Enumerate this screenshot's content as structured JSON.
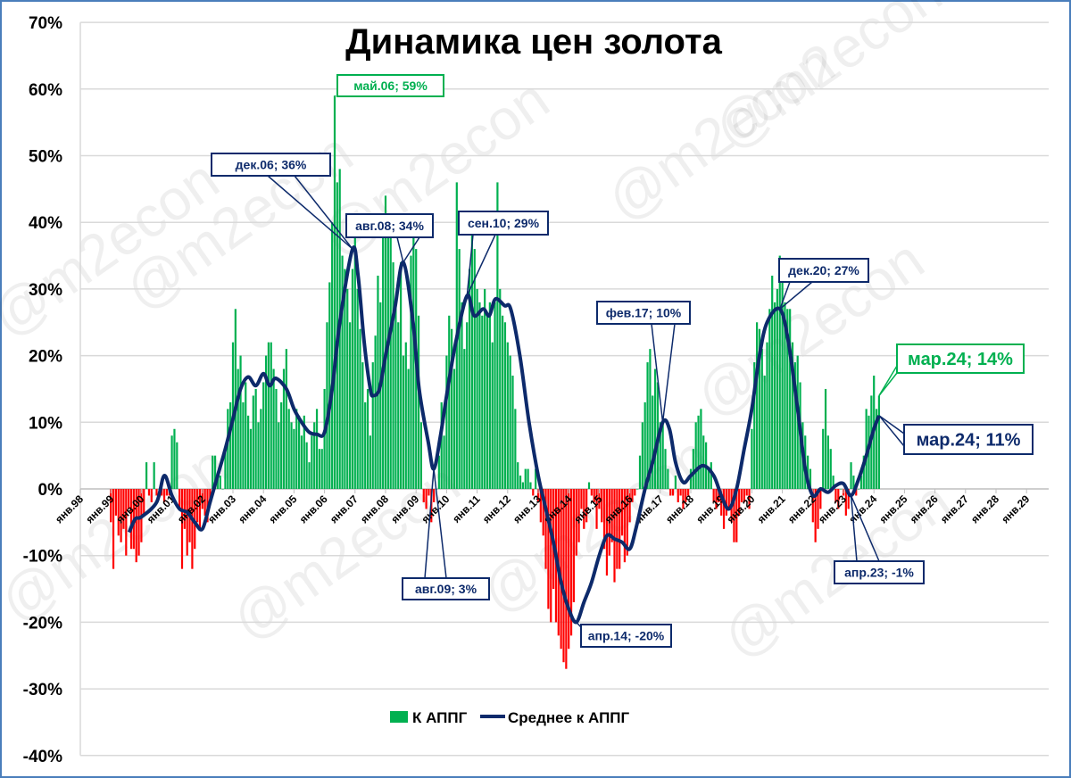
{
  "chart_data": {
    "type": "bar+line",
    "title": "Динамика цен золота",
    "xlabel": "",
    "ylabel": "",
    "ylim": [
      -40,
      70
    ],
    "yticks": [
      "70%",
      "60%",
      "50%",
      "40%",
      "30%",
      "20%",
      "10%",
      "0%",
      "-10%",
      "-20%",
      "-30%",
      "-40%"
    ],
    "ytick_values": [
      70,
      60,
      50,
      40,
      30,
      20,
      10,
      0,
      -10,
      -20,
      -30,
      -40
    ],
    "xticks": [
      "янв.98",
      "янв.99",
      "янв.00",
      "янв.01",
      "янв.02",
      "янв.03",
      "янв.04",
      "янв.05",
      "янв.06",
      "янв.07",
      "янв.08",
      "янв.09",
      "янв.10",
      "янв.11",
      "янв.12",
      "янв.13",
      "янв.14",
      "янв.15",
      "янв.16",
      "янв.17",
      "янв.18",
      "янв.19",
      "янв.20",
      "янв.21",
      "янв.22",
      "янв.23",
      "янв.24",
      "янв.25",
      "янв.26",
      "янв.27",
      "янв.28",
      "янв.29"
    ],
    "xrange_years": [
      1998,
      2029
    ],
    "grid": "horizontal",
    "legend_position": "bottom-center",
    "legend": [
      "К АППГ",
      "Среднее к АППГ"
    ],
    "colors": {
      "positive": "#00b050",
      "negative": "#ff0000",
      "line": "#0d2a6b",
      "grid": "#d9d9d9"
    },
    "bars": {
      "name": "К АППГ",
      "start": "1999-01",
      "monthly_values_by_year": {
        "1999": [
          -5,
          -12,
          -4,
          -7,
          -8,
          -6,
          -10,
          -3,
          -9,
          -9,
          -11,
          -10
        ],
        "2000": [
          -8,
          -4,
          4,
          -1,
          -2,
          4,
          -1,
          0,
          -1,
          -2,
          -1,
          -1
        ],
        "2001": [
          8,
          9,
          7,
          -3,
          -12,
          -6,
          -10,
          -8,
          -12,
          -9,
          -5,
          -6
        ],
        "2002": [
          -3,
          -4,
          -5,
          -2,
          5,
          5,
          2,
          2,
          0,
          6,
          12,
          13
        ],
        "2003": [
          22,
          27,
          18,
          20,
          13,
          16,
          11,
          9,
          14,
          15,
          10,
          12
        ],
        "2004": [
          16,
          20,
          22,
          22,
          18,
          15,
          10,
          13,
          18,
          21,
          12,
          10
        ],
        "2005": [
          9,
          12,
          11,
          8,
          11,
          7,
          4,
          8,
          10,
          12,
          6,
          6
        ],
        "2006": [
          15,
          25,
          31,
          40,
          59,
          46,
          48,
          35,
          33,
          30,
          25,
          33
        ],
        "2007": [
          38,
          30,
          24,
          19,
          13,
          15,
          8,
          19,
          23,
          32,
          28,
          41
        ],
        "2008": [
          44,
          40,
          38,
          34,
          28,
          25,
          34,
          20,
          22,
          18,
          35,
          40
        ],
        "2009": [
          36,
          26,
          10,
          -2,
          -3,
          -1,
          -5,
          -2,
          0,
          5,
          13,
          8
        ],
        "2010": [
          20,
          26,
          24,
          18,
          46,
          36,
          28,
          21,
          25,
          33,
          39,
          36
        ],
        "2011": [
          30,
          28,
          26,
          30,
          26,
          28,
          22,
          28,
          46,
          30,
          26,
          25
        ],
        "2012": [
          22,
          20,
          17,
          12,
          4,
          2,
          1,
          3,
          3,
          1,
          -1,
          3
        ],
        "2013": [
          -2,
          -5,
          -7,
          -12,
          -18,
          -20,
          -15,
          -20,
          -22,
          -24,
          -26,
          -27
        ],
        "2014": [
          -24,
          -22,
          -17,
          -10,
          -8,
          -3,
          -6,
          -5,
          1,
          -1,
          -2,
          -6
        ],
        "2015": [
          -3,
          -5,
          -9,
          -13,
          -10,
          -8,
          -14,
          -12,
          -12,
          -7,
          -11,
          -10
        ],
        "2016": [
          -5,
          -2,
          -1,
          0,
          5,
          10,
          13,
          19,
          21,
          14,
          18,
          16
        ],
        "2017": [
          10,
          10,
          6,
          3,
          -1,
          -1,
          2,
          -2,
          -1,
          -3,
          -2,
          -1
        ],
        "2018": [
          3,
          6,
          10,
          11,
          12,
          8,
          7,
          3,
          4,
          -2,
          -3,
          -2
        ],
        "2019": [
          -4,
          -6,
          -4,
          -3,
          -5,
          -8,
          -8,
          -4,
          -2,
          -2,
          -1,
          -3
        ],
        "2020": [
          9,
          19,
          25,
          24,
          21,
          17,
          22,
          27,
          32,
          28,
          30,
          35
        ],
        "2021": [
          33,
          28,
          27,
          27,
          22,
          19,
          20,
          16,
          10,
          8,
          5,
          3
        ],
        "2022": [
          -5,
          -8,
          -6,
          -3,
          9,
          15,
          8,
          6,
          2,
          -2,
          -3,
          0
        ],
        "2023": [
          -1,
          -4,
          -3,
          4,
          2,
          -1,
          0,
          2,
          5,
          12,
          11,
          14
        ],
        "2024": [
          17,
          12,
          14
        ]
      }
    },
    "line": {
      "name": "Среднее к АППГ",
      "points_year_value": [
        [
          1999.6,
          -6.5
        ],
        [
          1999.8,
          -4.5
        ],
        [
          2000.0,
          -4.2
        ],
        [
          2000.5,
          -2
        ],
        [
          2000.75,
          2
        ],
        [
          2001.0,
          -1
        ],
        [
          2001.25,
          -3
        ],
        [
          2001.5,
          -3.5
        ],
        [
          2001.75,
          -5
        ],
        [
          2002.0,
          -6
        ],
        [
          2002.25,
          -2
        ],
        [
          2002.5,
          2
        ],
        [
          2002.75,
          6
        ],
        [
          2003.0,
          10.5
        ],
        [
          2003.25,
          15
        ],
        [
          2003.5,
          16.8
        ],
        [
          2003.75,
          15.5
        ],
        [
          2004.0,
          17.3
        ],
        [
          2004.2,
          15.5
        ],
        [
          2004.4,
          16.6
        ],
        [
          2004.75,
          15
        ],
        [
          2005.0,
          12
        ],
        [
          2005.25,
          10
        ],
        [
          2005.5,
          8.5
        ],
        [
          2005.75,
          8.2
        ],
        [
          2006.0,
          8.5
        ],
        [
          2006.25,
          15
        ],
        [
          2006.5,
          25
        ],
        [
          2006.92,
          36
        ],
        [
          2007.1,
          32
        ],
        [
          2007.3,
          22
        ],
        [
          2007.5,
          15
        ],
        [
          2007.6,
          14
        ],
        [
          2007.8,
          15
        ],
        [
          2008.0,
          20
        ],
        [
          2008.3,
          27
        ],
        [
          2008.58,
          34
        ],
        [
          2008.9,
          25
        ],
        [
          2009.1,
          15
        ],
        [
          2009.4,
          7
        ],
        [
          2009.58,
          3
        ],
        [
          2009.8,
          8
        ],
        [
          2010.0,
          14
        ],
        [
          2010.3,
          22
        ],
        [
          2010.67,
          29
        ],
        [
          2010.9,
          26
        ],
        [
          2011.2,
          27
        ],
        [
          2011.4,
          26
        ],
        [
          2011.6,
          28.5
        ],
        [
          2011.9,
          27.5
        ],
        [
          2012.1,
          27
        ],
        [
          2012.4,
          20
        ],
        [
          2012.7,
          10
        ],
        [
          2013.0,
          2
        ],
        [
          2013.25,
          -3
        ],
        [
          2013.5,
          -8
        ],
        [
          2013.75,
          -14
        ],
        [
          2014.0,
          -18
        ],
        [
          2014.25,
          -20
        ],
        [
          2014.5,
          -17
        ],
        [
          2014.75,
          -14
        ],
        [
          2015.0,
          -10
        ],
        [
          2015.25,
          -7
        ],
        [
          2015.5,
          -7.5
        ],
        [
          2015.75,
          -8
        ],
        [
          2016.0,
          -9
        ],
        [
          2016.2,
          -6
        ],
        [
          2016.5,
          0
        ],
        [
          2016.75,
          4
        ],
        [
          2017.08,
          10
        ],
        [
          2017.3,
          9
        ],
        [
          2017.5,
          4
        ],
        [
          2017.75,
          1
        ],
        [
          2018.0,
          2
        ],
        [
          2018.4,
          3.5
        ],
        [
          2018.75,
          2
        ],
        [
          2019.0,
          -1
        ],
        [
          2019.25,
          -3
        ],
        [
          2019.5,
          0
        ],
        [
          2019.75,
          6
        ],
        [
          2020.0,
          12
        ],
        [
          2020.25,
          20
        ],
        [
          2020.5,
          25
        ],
        [
          2020.92,
          27
        ],
        [
          2021.2,
          22
        ],
        [
          2021.5,
          12
        ],
        [
          2021.75,
          3
        ],
        [
          2022.0,
          -1
        ],
        [
          2022.25,
          0
        ],
        [
          2022.5,
          -0.5
        ],
        [
          2022.75,
          0.5
        ],
        [
          2023.0,
          0.8
        ],
        [
          2023.25,
          -1
        ],
        [
          2023.5,
          1.5
        ],
        [
          2023.75,
          5
        ],
        [
          2024.0,
          9
        ],
        [
          2024.17,
          11
        ]
      ]
    },
    "annotations": [
      {
        "text": "май.06; 59%",
        "series": "bars",
        "t": 2006.37,
        "value": 59
      },
      {
        "text": "дек.06; 36%",
        "series": "line",
        "t": 2006.92,
        "value": 36
      },
      {
        "text": "авг.08; 34%",
        "series": "line",
        "t": 2008.58,
        "value": 34
      },
      {
        "text": "авг.09; 3%",
        "series": "line",
        "t": 2009.58,
        "value": 3
      },
      {
        "text": "сен.10; 29%",
        "series": "line",
        "t": 2010.67,
        "value": 29
      },
      {
        "text": "апр.14; -20%",
        "series": "line",
        "t": 2014.25,
        "value": -20
      },
      {
        "text": "фев.17; 10%",
        "series": "line",
        "t": 2017.08,
        "value": 10
      },
      {
        "text": "дек.20; 27%",
        "series": "line",
        "t": 2020.92,
        "value": 27
      },
      {
        "text": "апр.23; -1%",
        "series": "line",
        "t": 2023.25,
        "value": -1
      },
      {
        "text": "мар.24; 14%",
        "series": "bars",
        "t": 2024.17,
        "value": 14
      },
      {
        "text": "мар.24; 11%",
        "series": "line",
        "t": 2024.17,
        "value": 11
      }
    ],
    "watermark": "@m2econ"
  }
}
